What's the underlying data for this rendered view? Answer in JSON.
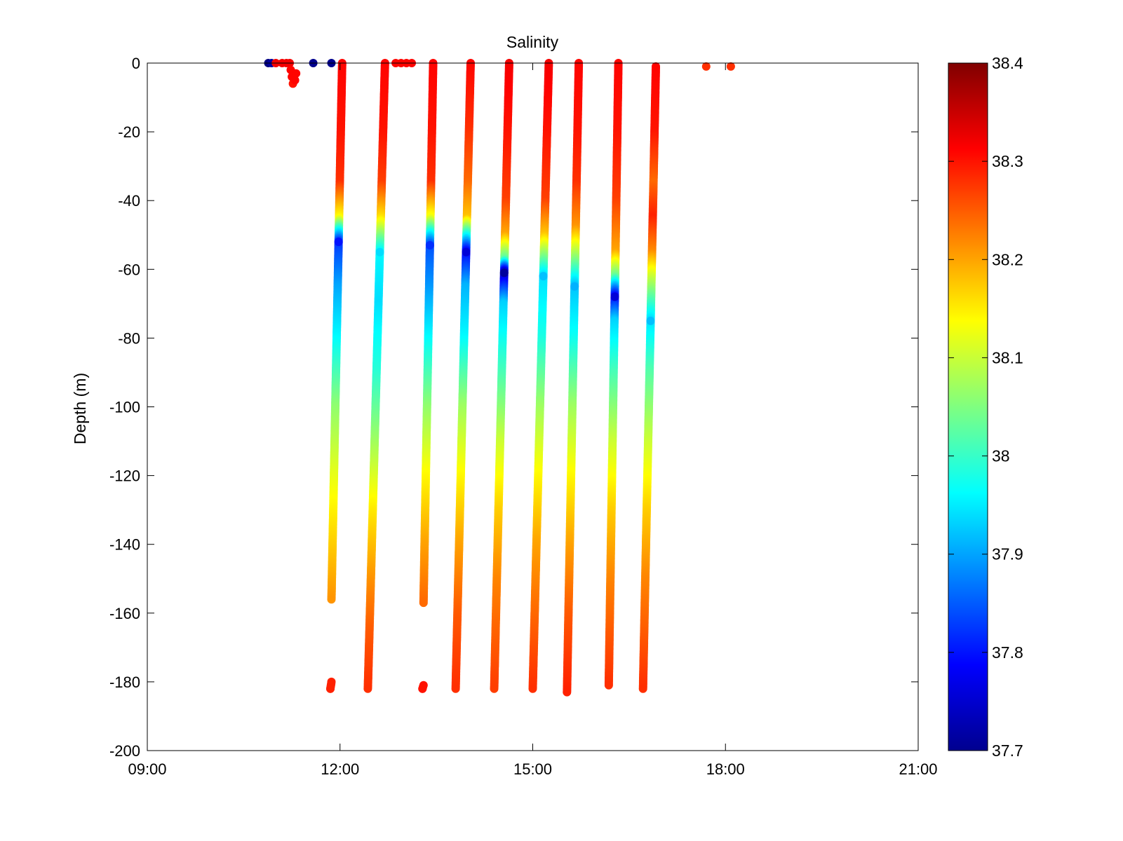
{
  "chart_data": {
    "type": "scatter",
    "title": "Salinity",
    "xlabel": "",
    "ylabel": "Depth (m)",
    "xlim": [
      "09:00",
      "21:00"
    ],
    "ylim": [
      -200,
      0
    ],
    "x_ticks": [
      "09:00",
      "12:00",
      "15:00",
      "18:00",
      "21:00"
    ],
    "y_ticks": [
      "0",
      "-20",
      "-40",
      "-60",
      "-80",
      "-100",
      "-120",
      "-140",
      "-160",
      "-180",
      "-200"
    ],
    "grid": false,
    "colorbar": {
      "colormap": "jet",
      "range": [
        37.7,
        38.4
      ],
      "ticks": [
        "38.4",
        "38.3",
        "38.2",
        "38.1",
        "38",
        "37.9",
        "37.8",
        "37.7"
      ]
    },
    "surface_points": [
      {
        "time": "10:53",
        "depth": 0,
        "salinity": 37.7
      },
      {
        "time": "10:56",
        "depth": 0,
        "salinity": 37.72
      },
      {
        "time": "11:00",
        "depth": 0,
        "salinity": 38.32
      },
      {
        "time": "11:06",
        "depth": 0,
        "salinity": 38.32
      },
      {
        "time": "11:10",
        "depth": 0,
        "salinity": 38.32
      },
      {
        "time": "11:13",
        "depth": 0,
        "salinity": 38.32
      },
      {
        "time": "11:14",
        "depth": -2,
        "salinity": 38.31
      },
      {
        "time": "11:15",
        "depth": -4,
        "salinity": 38.31
      },
      {
        "time": "11:16",
        "depth": -6,
        "salinity": 38.3
      },
      {
        "time": "11:18",
        "depth": -5,
        "salinity": 38.31
      },
      {
        "time": "11:19",
        "depth": -3,
        "salinity": 38.31
      },
      {
        "time": "11:35",
        "depth": 0,
        "salinity": 37.71
      },
      {
        "time": "11:52",
        "depth": 0,
        "salinity": 37.71
      },
      {
        "time": "12:52",
        "depth": 0,
        "salinity": 38.31
      },
      {
        "time": "12:57",
        "depth": 0,
        "salinity": 38.31
      },
      {
        "time": "13:02",
        "depth": 0,
        "salinity": 38.31
      },
      {
        "time": "13:07",
        "depth": 0,
        "salinity": 38.31
      },
      {
        "time": "17:42",
        "depth": -1,
        "salinity": 38.28
      },
      {
        "time": "18:05",
        "depth": -1,
        "salinity": 38.28
      }
    ],
    "profiles": [
      {
        "start": "12:02",
        "end": "11:52",
        "bottom_depth": -156,
        "min_at": -52,
        "min_value": 37.8,
        "profile": [
          [
            0,
            38.31
          ],
          [
            -20,
            38.3
          ],
          [
            -35,
            38.28
          ],
          [
            -45,
            38.14
          ],
          [
            -52,
            37.82
          ],
          [
            -65,
            37.9
          ],
          [
            -80,
            37.96
          ],
          [
            -100,
            38.06
          ],
          [
            -120,
            38.12
          ],
          [
            -140,
            38.17
          ],
          [
            -156,
            38.21
          ]
        ]
      },
      {
        "start": "11:52",
        "end": "11:51",
        "bottom_depth": -182,
        "min_at": -182,
        "min_value": 38.29,
        "profile": [
          [
            -180,
            38.29
          ],
          [
            -182,
            38.29
          ]
        ]
      },
      {
        "start": "12:42",
        "end": "12:26",
        "bottom_depth": -182,
        "min_at": -55,
        "min_value": 37.94,
        "profile": [
          [
            0,
            38.31
          ],
          [
            -20,
            38.3
          ],
          [
            -35,
            38.27
          ],
          [
            -45,
            38.16
          ],
          [
            -55,
            37.96
          ],
          [
            -70,
            37.94
          ],
          [
            -90,
            37.99
          ],
          [
            -110,
            38.07
          ],
          [
            -130,
            38.15
          ],
          [
            -150,
            38.21
          ],
          [
            -165,
            38.25
          ],
          [
            -182,
            38.28
          ]
        ]
      },
      {
        "start": "13:27",
        "end": "13:18",
        "bottom_depth": -157,
        "min_at": -53,
        "min_value": 37.82,
        "profile": [
          [
            0,
            38.31
          ],
          [
            -20,
            38.3
          ],
          [
            -35,
            38.28
          ],
          [
            -45,
            38.13
          ],
          [
            -53,
            37.84
          ],
          [
            -65,
            37.89
          ],
          [
            -80,
            37.96
          ],
          [
            -100,
            38.06
          ],
          [
            -120,
            38.14
          ],
          [
            -140,
            38.2
          ],
          [
            -157,
            38.24
          ]
        ]
      },
      {
        "start": "13:18",
        "end": "13:17",
        "bottom_depth": -182,
        "min_at": -182,
        "min_value": 38.3,
        "profile": [
          [
            -181,
            38.3
          ],
          [
            -183,
            38.3
          ]
        ]
      },
      {
        "start": "14:02",
        "end": "13:48",
        "bottom_depth": -182,
        "min_at": -55,
        "min_value": 37.76,
        "profile": [
          [
            0,
            38.31
          ],
          [
            -20,
            38.28
          ],
          [
            -35,
            38.24
          ],
          [
            -45,
            38.18
          ],
          [
            -55,
            37.78
          ],
          [
            -65,
            37.91
          ],
          [
            -80,
            37.96
          ],
          [
            -100,
            38.07
          ],
          [
            -120,
            38.14
          ],
          [
            -140,
            38.2
          ],
          [
            -160,
            38.25
          ],
          [
            -182,
            38.28
          ]
        ]
      },
      {
        "start": "14:38",
        "end": "14:24",
        "bottom_depth": -182,
        "min_at": -61,
        "min_value": 37.72,
        "profile": [
          [
            0,
            38.32
          ],
          [
            -20,
            38.3
          ],
          [
            -40,
            38.27
          ],
          [
            -50,
            38.2
          ],
          [
            -57,
            38.03
          ],
          [
            -61,
            37.73
          ],
          [
            -70,
            37.93
          ],
          [
            -90,
            38.01
          ],
          [
            -110,
            38.1
          ],
          [
            -130,
            38.17
          ],
          [
            -150,
            38.22
          ],
          [
            -182,
            38.27
          ]
        ]
      },
      {
        "start": "15:15",
        "end": "15:00",
        "bottom_depth": -182,
        "min_at": -62,
        "min_value": 37.92,
        "profile": [
          [
            0,
            38.32
          ],
          [
            -20,
            38.3
          ],
          [
            -40,
            38.27
          ],
          [
            -50,
            38.18
          ],
          [
            -62,
            37.94
          ],
          [
            -80,
            37.98
          ],
          [
            -100,
            38.07
          ],
          [
            -120,
            38.14
          ],
          [
            -140,
            38.2
          ],
          [
            -160,
            38.24
          ],
          [
            -182,
            38.28
          ]
        ]
      },
      {
        "start": "15:43",
        "end": "15:32",
        "bottom_depth": -183,
        "min_at": -65,
        "min_value": 37.91,
        "profile": [
          [
            0,
            38.31
          ],
          [
            -20,
            38.3
          ],
          [
            -35,
            38.28
          ],
          [
            -48,
            38.21
          ],
          [
            -57,
            38.06
          ],
          [
            -65,
            37.92
          ],
          [
            -80,
            37.97
          ],
          [
            -100,
            38.07
          ],
          [
            -120,
            38.14
          ],
          [
            -140,
            38.2
          ],
          [
            -160,
            38.25
          ],
          [
            -183,
            38.29
          ]
        ]
      },
      {
        "start": "16:20",
        "end": "16:11",
        "bottom_depth": -181,
        "min_at": -68,
        "min_value": 37.76,
        "profile": [
          [
            0,
            38.31
          ],
          [
            -20,
            38.3
          ],
          [
            -40,
            38.27
          ],
          [
            -55,
            38.2
          ],
          [
            -62,
            38.04
          ],
          [
            -68,
            37.78
          ],
          [
            -75,
            37.93
          ],
          [
            -90,
            38.01
          ],
          [
            -110,
            38.1
          ],
          [
            -130,
            38.17
          ],
          [
            -150,
            38.22
          ],
          [
            -181,
            38.28
          ]
        ]
      },
      {
        "start": "16:55",
        "end": "16:43",
        "bottom_depth": -182,
        "min_at": -75,
        "min_value": 37.92,
        "profile": [
          [
            -1,
            38.31
          ],
          [
            -20,
            38.3
          ],
          [
            -35,
            38.24
          ],
          [
            -45,
            38.29
          ],
          [
            -55,
            38.22
          ],
          [
            -62,
            38.11
          ],
          [
            -75,
            37.94
          ],
          [
            -90,
            38.02
          ],
          [
            -110,
            38.1
          ],
          [
            -130,
            38.17
          ],
          [
            -150,
            38.22
          ],
          [
            -182,
            38.28
          ]
        ]
      }
    ]
  }
}
